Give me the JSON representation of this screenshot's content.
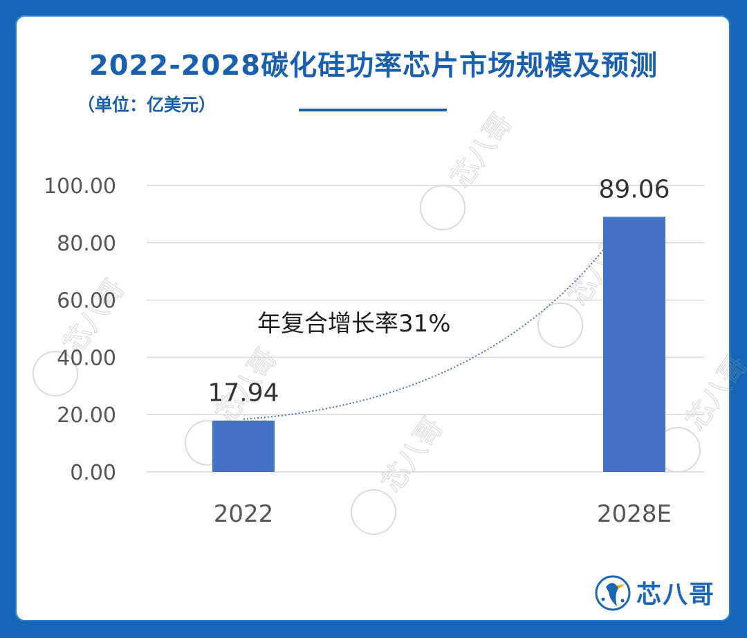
{
  "title": "2022-2028碳化硅功率芯片市场规模及预测",
  "subtitle": "（单位：亿美元）",
  "annotation": "年复合增长率31%",
  "watermark": "芯八哥",
  "logo_text": "芯八哥",
  "colors": {
    "background": "#1466b8",
    "title": "#1a5fae",
    "bar": "#4472c4",
    "trend": "#4472c4",
    "grid": "#d9d9d9"
  },
  "chart_data": {
    "type": "bar",
    "categories": [
      "2022",
      "2028E"
    ],
    "values": [
      17.94,
      89.06
    ],
    "value_labels": [
      "17.94",
      "89.06"
    ],
    "ylim": [
      0,
      100
    ],
    "yticks": [
      "0.00",
      "20.00",
      "40.00",
      "60.00",
      "80.00",
      "100.00"
    ],
    "ytick_values": [
      0,
      20,
      40,
      60,
      80,
      100
    ],
    "grid": true,
    "trendline": "dotted",
    "xlabel": "",
    "ylabel": ""
  }
}
